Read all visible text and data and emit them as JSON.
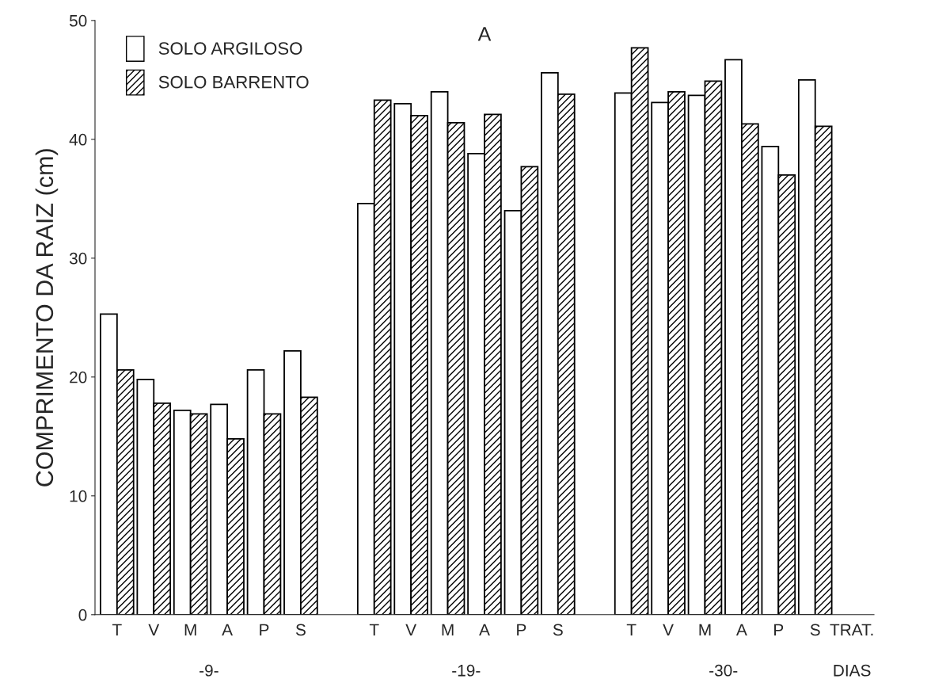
{
  "chart_data": {
    "type": "bar",
    "title": "A",
    "ylabel": "COMPRIMENTO DA RAIZ (cm)",
    "categories": [
      "T",
      "V",
      "M",
      "A",
      "P",
      "S",
      null,
      "T",
      "V",
      "M",
      "A",
      "P",
      "S",
      null,
      "T",
      "V",
      "M",
      "A",
      "P",
      "S",
      "TRAT."
    ],
    "series": [
      {
        "name": "SOLO ARGILOSO",
        "color": "#ffffff",
        "values": [
          25.3,
          19.8,
          17.2,
          17.7,
          20.6,
          22.2,
          null,
          34.6,
          43.0,
          44.0,
          38.8,
          34.0,
          45.6,
          null,
          43.9,
          43.1,
          43.7,
          46.7,
          39.4,
          45.0,
          null
        ]
      },
      {
        "name": "SOLO BARRENTO",
        "color": "#000000",
        "values": [
          20.6,
          17.8,
          16.9,
          14.8,
          16.9,
          18.3,
          null,
          43.3,
          42.0,
          41.4,
          42.1,
          37.7,
          43.8,
          null,
          47.7,
          44.0,
          44.9,
          41.3,
          37.0,
          41.1,
          null
        ]
      }
    ],
    "annotations": [
      "-9-",
      "-19-",
      "-30-",
      "DIAS"
    ],
    "ylim": [
      0,
      50
    ],
    "yticks": [
      0,
      10,
      20,
      30,
      40,
      50
    ],
    "grid": false,
    "legend": "top left"
  }
}
